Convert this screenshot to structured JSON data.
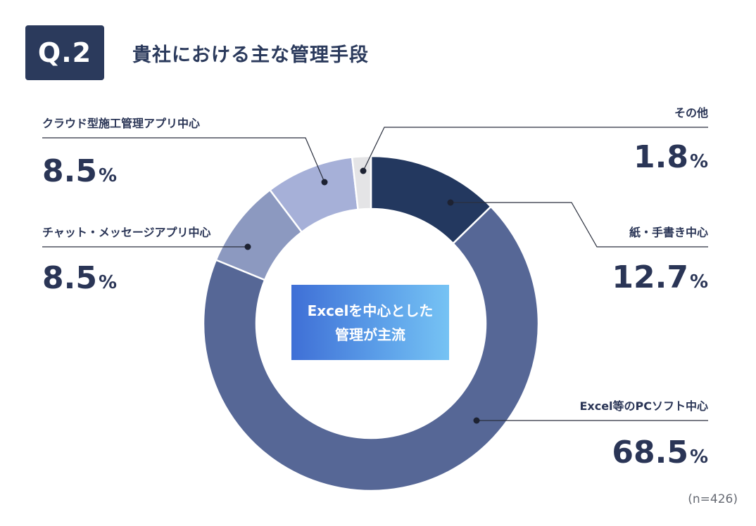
{
  "header": {
    "badge": "Q.2",
    "title": "貴社における主な管理手段"
  },
  "center_message": {
    "line1": "Excelを中心とした",
    "line2": "管理が主流"
  },
  "sample_size": "(n=426)",
  "colors": {
    "paper": "#23385f",
    "excel": "#566796",
    "chat": "#8c99c0",
    "cloud": "#a6b0d8",
    "other": "#e4e4e6",
    "text": "#2a3556"
  },
  "chart_data": {
    "type": "pie",
    "donut": true,
    "title": "",
    "start_angle_deg": 0,
    "direction": "clockwise",
    "slices": [
      {
        "key": "paper",
        "label": "紙・手書き中心",
        "value": "12.7",
        "unit": "%"
      },
      {
        "key": "excel",
        "label": "Excel等のPCソフト中心",
        "value": "68.5",
        "unit": "%"
      },
      {
        "key": "chat",
        "label": "チャット・メッセージアプリ中心",
        "value": "8.5",
        "unit": "%"
      },
      {
        "key": "cloud",
        "label": "クラウド型施工管理アプリ中心",
        "value": "8.5",
        "unit": "%"
      },
      {
        "key": "other",
        "label": "その他",
        "value": "1.8",
        "unit": "%"
      }
    ]
  }
}
